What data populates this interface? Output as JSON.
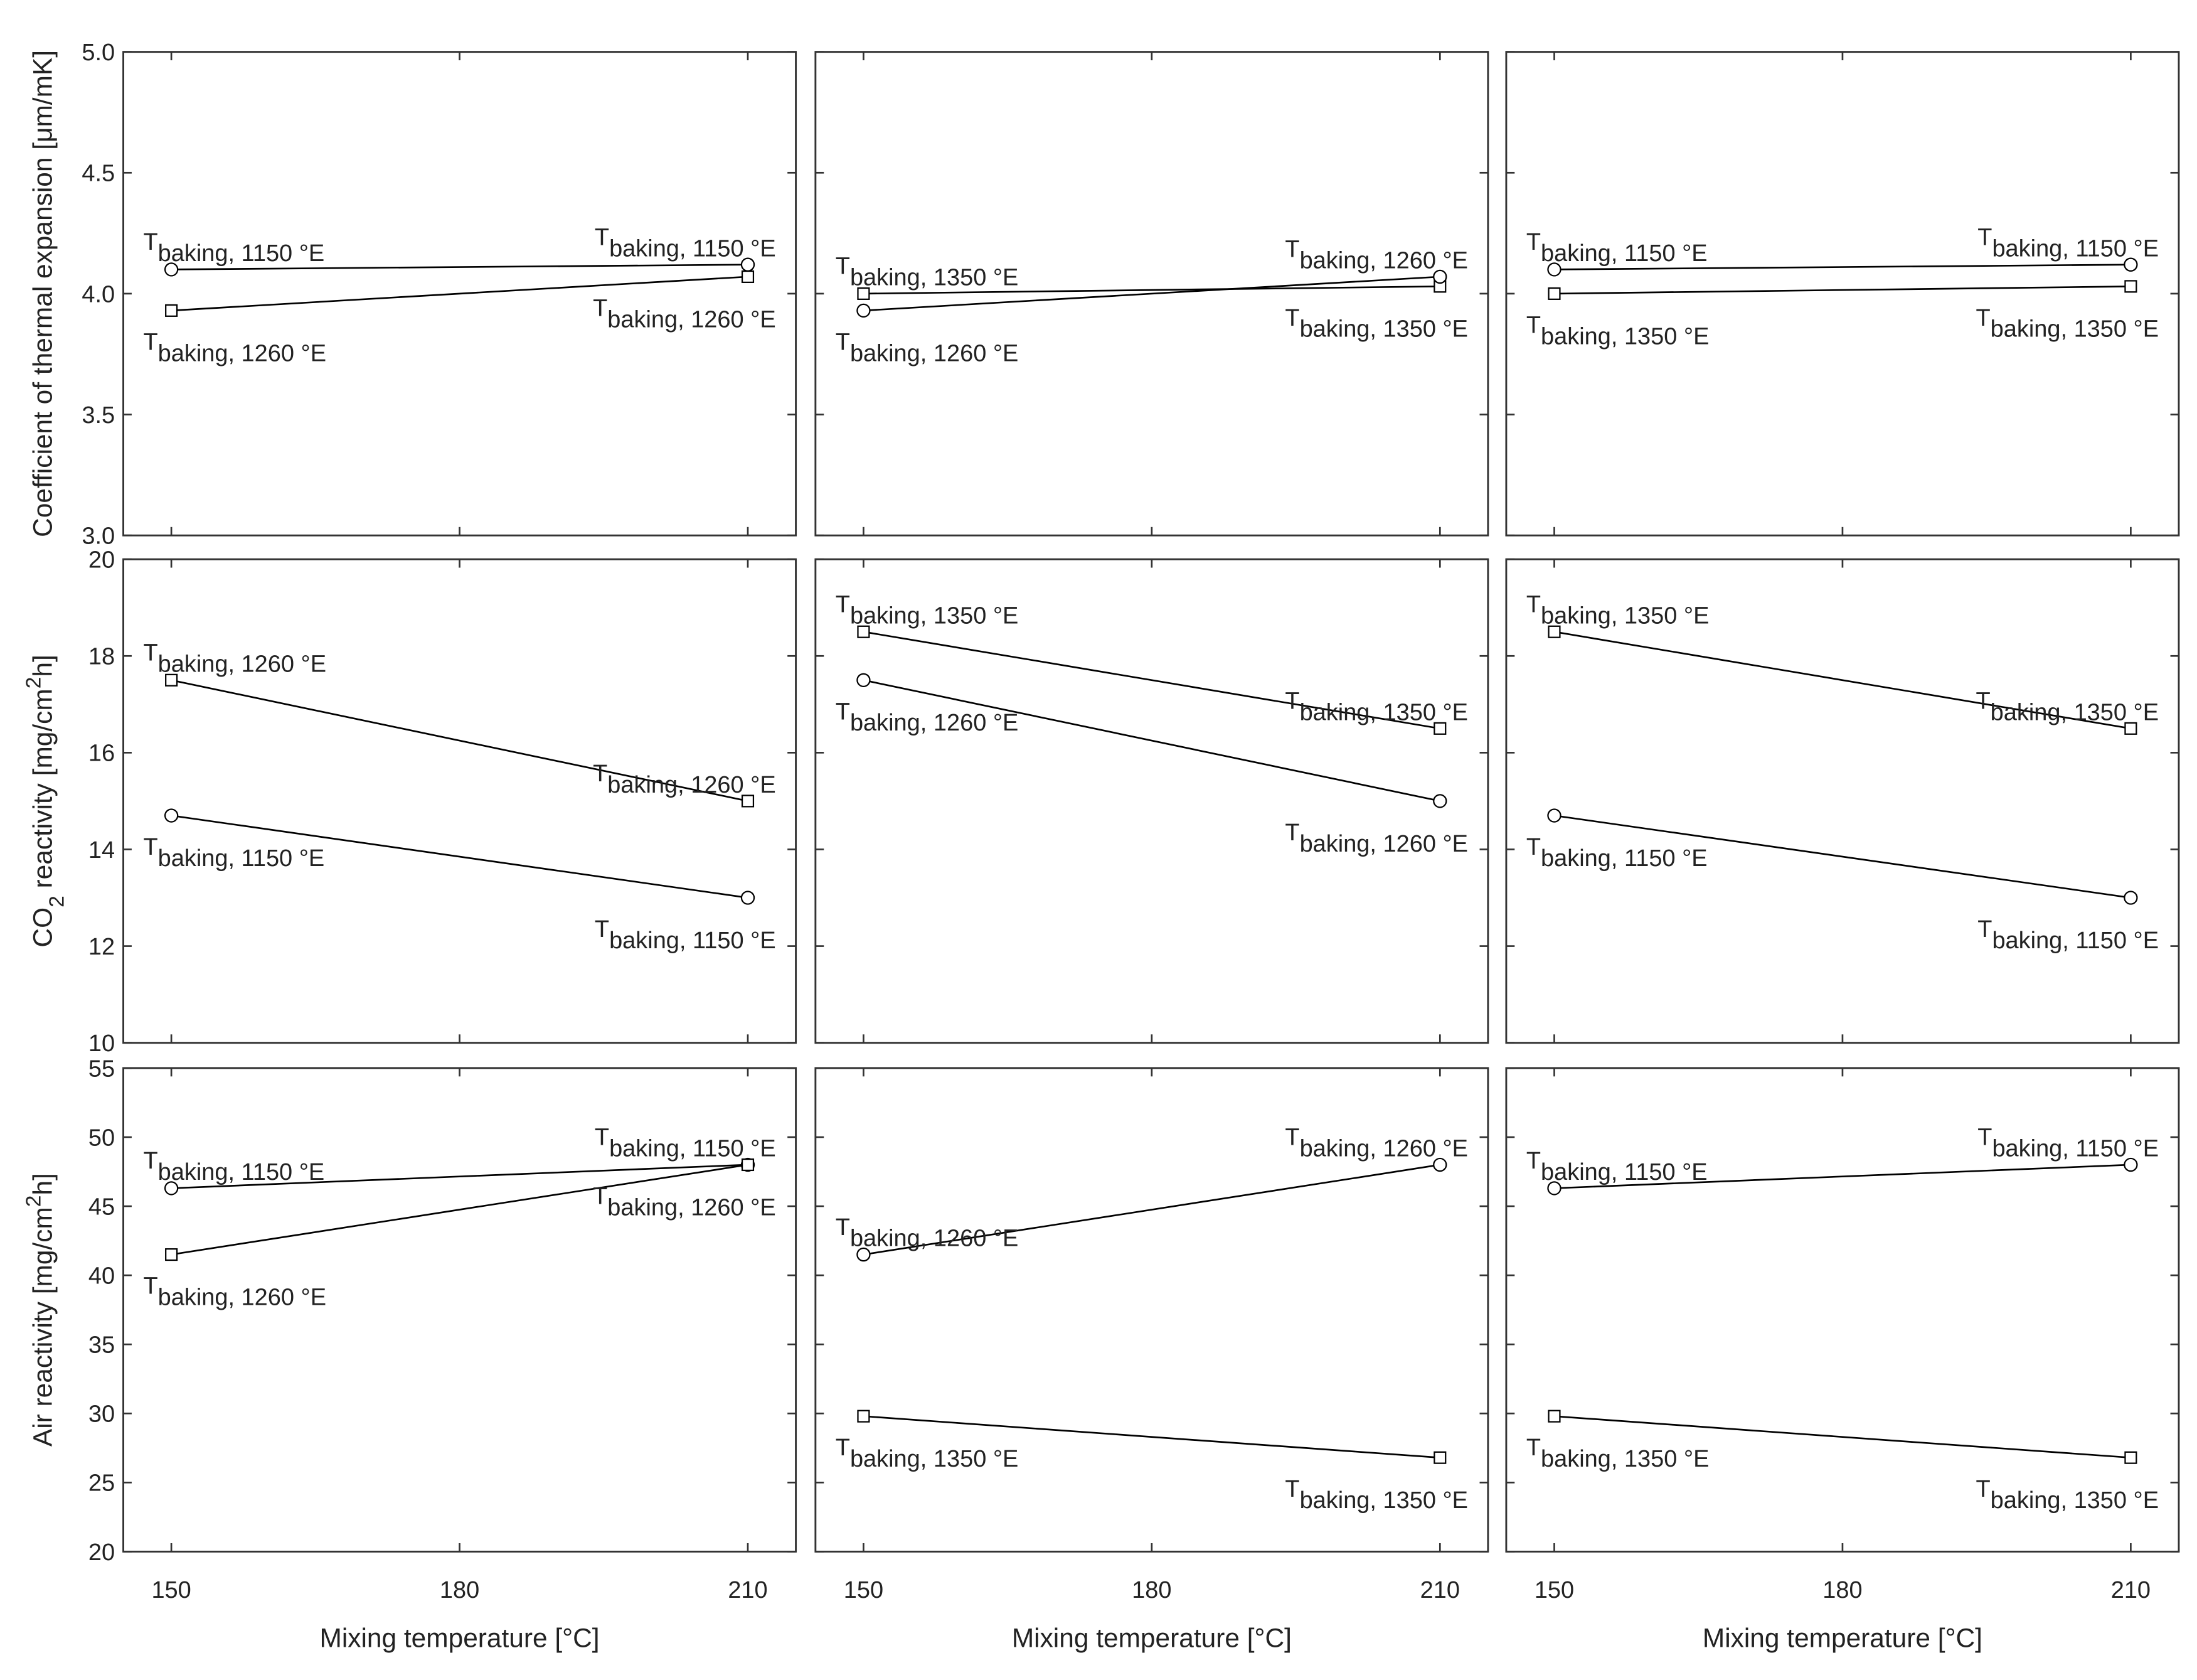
{
  "chart_data": [
    {
      "type": "line",
      "ylabel": [
        {
          "text": "Coefficient of thermal expansion [μm/mK]"
        }
      ],
      "x": [
        150,
        210
      ],
      "xlim": [
        145,
        215
      ],
      "xticks": [
        150,
        180,
        210
      ],
      "ylim": [
        3,
        5
      ],
      "yticks": [
        {
          "value": 3,
          "label": "3.0"
        },
        3.5,
        {
          "value": 4,
          "label": "4.0"
        },
        4.5,
        {
          "value": 5,
          "label": "5.0"
        }
      ],
      "series": [
        {
          "label_main": "T",
          "label_sub": "baking, 1150 °E",
          "marker": "circle",
          "color": "#000000",
          "values": [
            4.1,
            4.12
          ]
        },
        {
          "label_main": "T",
          "label_sub": "baking, 1260 °E",
          "marker": "square",
          "color": "#000000",
          "values": [
            3.93,
            4.07
          ]
        }
      ]
    },
    {
      "type": "line",
      "x": [
        150,
        210
      ],
      "xlim": [
        145,
        215
      ],
      "xticks": [
        150,
        180,
        210
      ],
      "ylim": [
        3,
        5
      ],
      "yticks": [
        {
          "value": 3,
          "label": "3.0"
        },
        3.5,
        {
          "value": 4,
          "label": "4.0"
        },
        4.5,
        {
          "value": 5,
          "label": "5.0"
        }
      ],
      "series": [
        {
          "label_main": "T",
          "label_sub": "baking, 1350 °E",
          "marker": "square",
          "color": "#000000",
          "values": [
            4.0,
            4.03
          ]
        },
        {
          "label_main": "T",
          "label_sub": "baking, 1260 °E",
          "marker": "circle",
          "color": "#000000",
          "values": [
            3.93,
            4.07
          ]
        }
      ]
    },
    {
      "type": "line",
      "x": [
        150,
        210
      ],
      "xlim": [
        145,
        215
      ],
      "xticks": [
        150,
        180,
        210
      ],
      "ylim": [
        3,
        5
      ],
      "yticks": [
        {
          "value": 3,
          "label": "3.0"
        },
        3.5,
        {
          "value": 4,
          "label": "4.0"
        },
        4.5,
        {
          "value": 5,
          "label": "5.0"
        }
      ],
      "series": [
        {
          "label_main": "T",
          "label_sub": "baking, 1150 °E",
          "marker": "circle",
          "color": "#000000",
          "values": [
            4.1,
            4.12
          ]
        },
        {
          "label_main": "T",
          "label_sub": "baking, 1350 °E",
          "marker": "square",
          "color": "#000000",
          "values": [
            4.0,
            4.03
          ]
        }
      ]
    },
    {
      "type": "line",
      "ylabel": [
        {
          "text": "CO"
        },
        {
          "text": "2",
          "style": "sub"
        },
        {
          "text": " reactivity [mg/cm"
        },
        {
          "text": "2",
          "style": "super"
        },
        {
          "text": "h]"
        }
      ],
      "x": [
        150,
        210
      ],
      "xlim": [
        145,
        215
      ],
      "xticks": [
        150,
        180,
        210
      ],
      "ylim": [
        10,
        20
      ],
      "yticks": [
        10,
        12,
        14,
        16,
        18,
        20
      ],
      "series": [
        {
          "label_main": "T",
          "label_sub": "baking, 1260 °E",
          "marker": "square",
          "color": "#000000",
          "values": [
            17.5,
            15.0
          ]
        },
        {
          "label_main": "T",
          "label_sub": "baking, 1150 °E",
          "marker": "circle",
          "color": "#000000",
          "values": [
            14.7,
            13.0
          ]
        }
      ]
    },
    {
      "type": "line",
      "x": [
        150,
        210
      ],
      "xlim": [
        145,
        215
      ],
      "xticks": [
        150,
        180,
        210
      ],
      "ylim": [
        10,
        20
      ],
      "yticks": [
        10,
        12,
        14,
        16,
        18,
        20
      ],
      "series": [
        {
          "label_main": "T",
          "label_sub": "baking, 1350 °E",
          "marker": "square",
          "color": "#000000",
          "values": [
            18.5,
            16.5
          ]
        },
        {
          "label_main": "T",
          "label_sub": "baking, 1260 °E",
          "marker": "circle",
          "color": "#000000",
          "values": [
            17.5,
            15.0
          ]
        }
      ]
    },
    {
      "type": "line",
      "x": [
        150,
        210
      ],
      "xlim": [
        145,
        215
      ],
      "xticks": [
        150,
        180,
        210
      ],
      "ylim": [
        10,
        20
      ],
      "yticks": [
        10,
        12,
        14,
        16,
        18,
        20
      ],
      "series": [
        {
          "label_main": "T",
          "label_sub": "baking, 1350 °E",
          "marker": "square",
          "color": "#000000",
          "values": [
            18.5,
            16.5
          ]
        },
        {
          "label_main": "T",
          "label_sub": "baking, 1150 °E",
          "marker": "circle",
          "color": "#000000",
          "values": [
            14.7,
            13.0
          ]
        }
      ]
    },
    {
      "type": "line",
      "ylabel": [
        {
          "text": "Air reactivity [mg/cm"
        },
        {
          "text": "2",
          "style": "super"
        },
        {
          "text": "h]"
        }
      ],
      "xlabel": "Mixing temperature [°C]",
      "x": [
        150,
        210
      ],
      "xlim": [
        145,
        215
      ],
      "xticks": [
        150,
        180,
        210
      ],
      "ylim": [
        20,
        55
      ],
      "yticks": [
        20,
        25,
        30,
        35,
        40,
        45,
        50,
        55
      ],
      "series": [
        {
          "label_main": "T",
          "label_sub": "baking, 1150 °E",
          "marker": "circle",
          "color": "#000000",
          "values": [
            46.3,
            48.0
          ]
        },
        {
          "label_main": "T",
          "label_sub": "baking, 1260 °E",
          "marker": "square",
          "color": "#000000",
          "values": [
            41.5,
            48.0
          ]
        }
      ]
    },
    {
      "type": "line",
      "xlabel": "Mixing temperature [°C]",
      "x": [
        150,
        210
      ],
      "xlim": [
        145,
        215
      ],
      "xticks": [
        150,
        180,
        210
      ],
      "ylim": [
        20,
        55
      ],
      "yticks": [
        20,
        25,
        30,
        35,
        40,
        45,
        50,
        55
      ],
      "series": [
        {
          "label_main": "T",
          "label_sub": "baking, 1260 °E",
          "marker": "circle",
          "color": "#000000",
          "values": [
            41.5,
            48.0
          ]
        },
        {
          "label_main": "T",
          "label_sub": "baking, 1350 °E",
          "marker": "square",
          "color": "#000000",
          "values": [
            29.8,
            26.8
          ]
        }
      ]
    },
    {
      "type": "line",
      "xlabel": "Mixing temperature [°C]",
      "x": [
        150,
        210
      ],
      "xlim": [
        145,
        215
      ],
      "xticks": [
        150,
        180,
        210
      ],
      "ylim": [
        20,
        55
      ],
      "yticks": [
        20,
        25,
        30,
        35,
        40,
        45,
        50,
        55
      ],
      "series": [
        {
          "label_main": "T",
          "label_sub": "baking, 1150 °E",
          "marker": "circle",
          "color": "#000000",
          "values": [
            46.3,
            48.0
          ]
        },
        {
          "label_main": "T",
          "label_sub": "baking, 1350 °E",
          "marker": "square",
          "color": "#000000",
          "values": [
            29.8,
            26.8
          ]
        }
      ]
    }
  ]
}
